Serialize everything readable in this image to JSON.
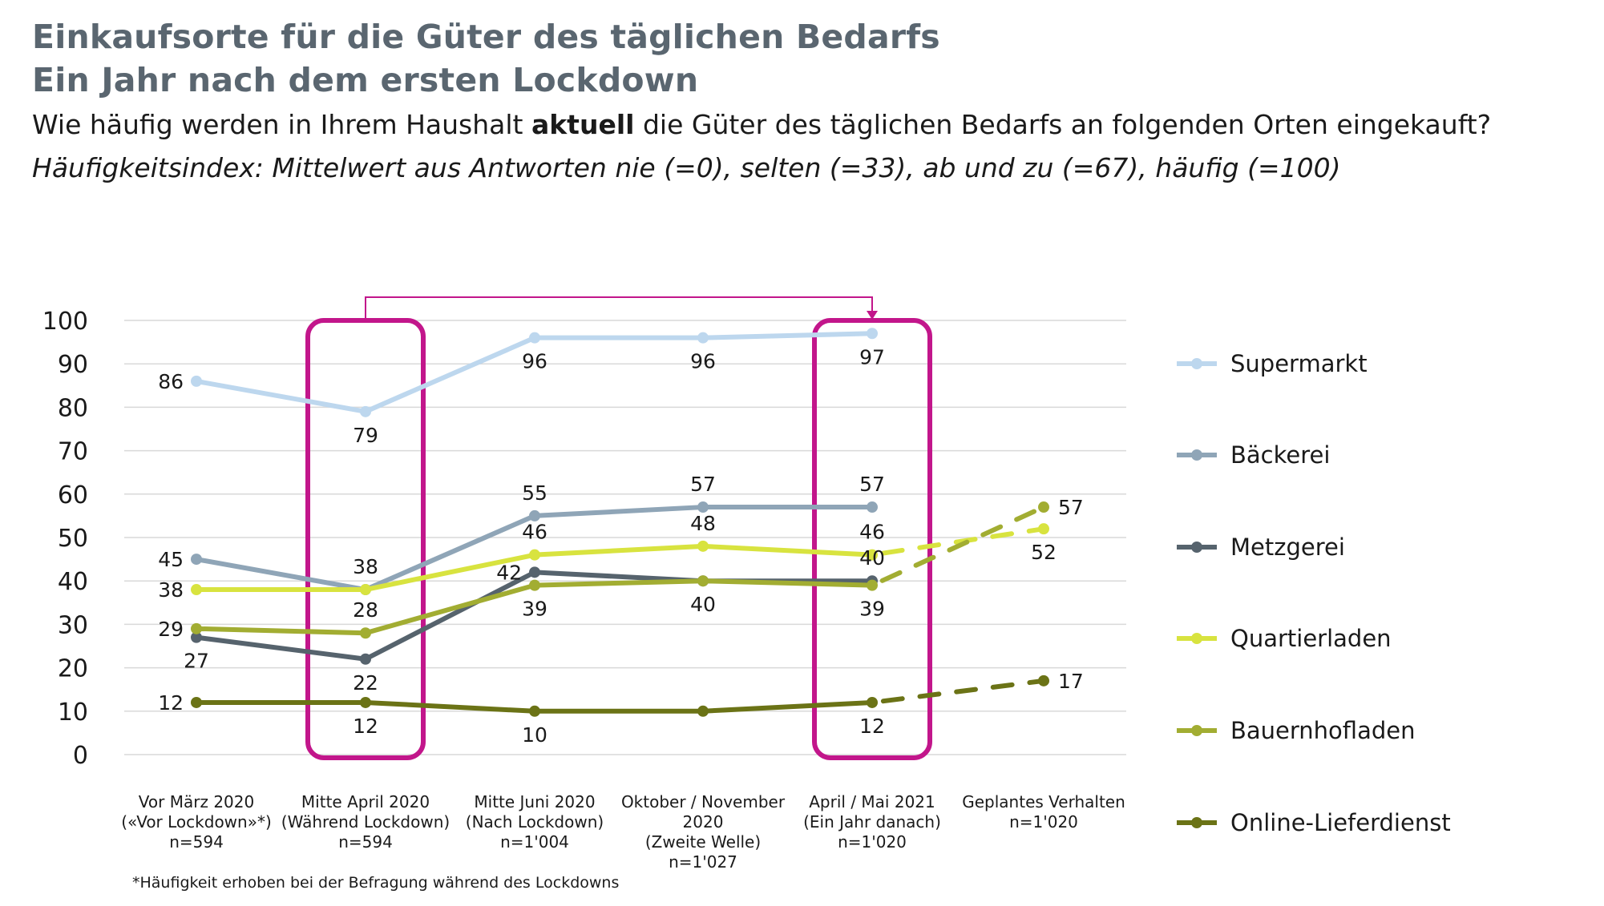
{
  "header": {
    "title_line1": "Einkaufsorte für die Güter des täglichen Bedarfs",
    "title_line2": "Ein Jahr nach dem ersten Lockdown",
    "question_pre": "Wie häufig werden in Ihrem Haushalt ",
    "question_bold": "aktuell",
    "question_post": " die Güter des täglichen Bedarfs an folgenden Orten eingekauft?",
    "index_note": "Häufigkeitsindex: Mittelwert aus Antworten nie (=0), selten (=33), ab und zu (=67), häufig (=100)"
  },
  "footnote": "*Häufigkeit erhoben bei der Befragung während des Lockdowns",
  "chart_data": {
    "type": "line",
    "ylim": [
      0,
      100
    ],
    "yticks": [
      0,
      10,
      20,
      30,
      40,
      50,
      60,
      70,
      80,
      90,
      100
    ],
    "grid": true,
    "legend_position": "right",
    "categories": [
      [
        "Vor März 2020",
        "(«Vor Lockdown»*)",
        "n=594"
      ],
      [
        "Mitte April 2020",
        "(Während Lockdown)",
        "n=594"
      ],
      [
        "Mitte Juni 2020",
        "(Nach Lockdown)",
        "n=1'004"
      ],
      [
        "Oktober / November",
        "2020",
        "(Zweite Welle)",
        "n=1'027"
      ],
      [
        "April / Mai 2021",
        "(Ein Jahr danach)",
        "n=1'020"
      ],
      [
        "Geplantes Verhalten",
        "n=1'020"
      ]
    ],
    "highlight_boxes": [
      1,
      4
    ],
    "series": [
      {
        "name": "Supermarkt",
        "color": "#bdd7ee",
        "values": [
          86,
          79,
          96,
          96,
          97,
          null
        ],
        "labels": [
          86,
          79,
          96,
          96,
          97,
          null
        ],
        "label_pos": [
          "left",
          "below",
          "below",
          "below",
          "below",
          null
        ]
      },
      {
        "name": "Bäckerei",
        "color": "#8fa5b7",
        "values": [
          45,
          38,
          55,
          57,
          57,
          null
        ],
        "labels": [
          45,
          38,
          55,
          57,
          57,
          null
        ],
        "label_pos": [
          "left",
          "above",
          "above",
          "above",
          "above",
          null
        ]
      },
      {
        "name": "Metzgerei",
        "color": "#56636d",
        "values": [
          27,
          22,
          42,
          40,
          40,
          null
        ],
        "labels": [
          27,
          22,
          42,
          null,
          40,
          null
        ],
        "label_pos": [
          "below",
          "below",
          "left",
          null,
          "above",
          null
        ]
      },
      {
        "name": "Quartierladen",
        "color": "#d8e33f",
        "values": [
          38,
          38,
          46,
          48,
          46,
          52
        ],
        "labels": [
          38,
          null,
          46,
          48,
          46,
          52
        ],
        "label_pos": [
          "left",
          null,
          "above",
          "above",
          "above",
          "below"
        ]
      },
      {
        "name": "Bauernhofladen",
        "color": "#a2ad32",
        "values": [
          29,
          28,
          39,
          40,
          39,
          57
        ],
        "labels": [
          29,
          28,
          39,
          40,
          39,
          57
        ],
        "label_pos": [
          "left",
          "above",
          "below",
          "below",
          "below",
          "right"
        ]
      },
      {
        "name": "Online-Lieferdienst",
        "color": "#6b7316",
        "values": [
          12,
          12,
          10,
          10,
          12,
          17
        ],
        "labels": [
          12,
          12,
          10,
          null,
          12,
          17
        ],
        "label_pos": [
          "left",
          "below",
          "below",
          null,
          "below",
          "right"
        ]
      }
    ]
  }
}
